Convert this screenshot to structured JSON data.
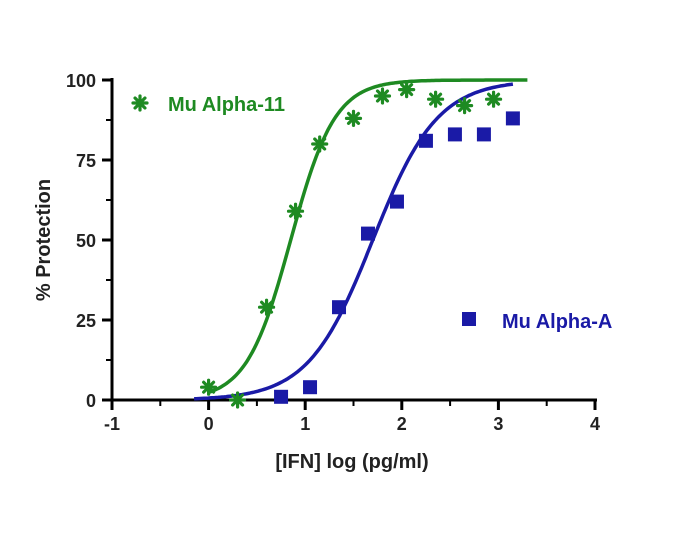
{
  "chart_data": {
    "type": "scatter",
    "title": "",
    "xlabel": "[IFN] log (pg/ml)",
    "ylabel": "% Protection",
    "xlim": [
      -1,
      4
    ],
    "ylim": [
      0,
      100
    ],
    "x_ticks": [
      -1,
      0,
      1,
      2,
      3,
      4
    ],
    "x_tick_labels": [
      "-1",
      "0",
      "1",
      "2",
      "3",
      "4"
    ],
    "y_ticks": [
      0,
      25,
      50,
      75,
      100
    ],
    "y_tick_labels": [
      "0",
      "25",
      "50",
      "75",
      "100"
    ],
    "grid": false,
    "legend": "inside",
    "series": [
      {
        "name": "Mu Alpha-11",
        "color": "#1e8a22",
        "marker": "asterisk",
        "points": [
          {
            "x": 0.0,
            "y": 4
          },
          {
            "x": 0.3,
            "y": 0
          },
          {
            "x": 0.6,
            "y": 29
          },
          {
            "x": 0.9,
            "y": 59
          },
          {
            "x": 1.15,
            "y": 80
          },
          {
            "x": 1.5,
            "y": 88
          },
          {
            "x": 1.8,
            "y": 95
          },
          {
            "x": 2.05,
            "y": 97
          },
          {
            "x": 2.35,
            "y": 94
          },
          {
            "x": 2.65,
            "y": 92
          },
          {
            "x": 2.95,
            "y": 94
          }
        ],
        "fit": {
          "type": "sigmoid",
          "bottom": 0,
          "top": 100,
          "ec50_log": 0.85,
          "hill_slope": 1.9,
          "x_range": [
            0,
            3.3
          ]
        }
      },
      {
        "name": "Mu Alpha-A",
        "color": "#1a1aa6",
        "marker": "square",
        "points": [
          {
            "x": 0.75,
            "y": 1
          },
          {
            "x": 1.05,
            "y": 4
          },
          {
            "x": 1.35,
            "y": 29
          },
          {
            "x": 1.65,
            "y": 52
          },
          {
            "x": 1.95,
            "y": 62
          },
          {
            "x": 2.25,
            "y": 81
          },
          {
            "x": 2.55,
            "y": 83
          },
          {
            "x": 2.85,
            "y": 83
          },
          {
            "x": 3.15,
            "y": 88
          }
        ],
        "fit": {
          "type": "sigmoid",
          "bottom": 0,
          "top": 100,
          "ec50_log": 1.7,
          "hill_slope": 1.3,
          "x_range": [
            -0.15,
            3.15
          ]
        }
      }
    ]
  }
}
